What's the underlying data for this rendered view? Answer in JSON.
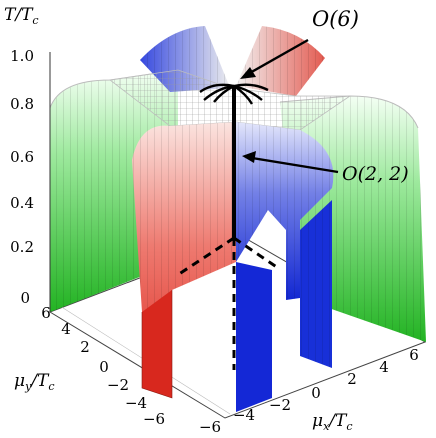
{
  "labels": {
    "y_axis": "T/T",
    "y_axis_sub": "c",
    "mu_y": "μ",
    "mu_y_sub": "y",
    "mu_y_tail": "/T",
    "mu_y_tail_sub": "c",
    "mu_x": "μ",
    "mu_x_sub": "x",
    "mu_x_tail": "/T",
    "mu_x_tail_sub": "c"
  },
  "annotations": {
    "o6": "O(6)",
    "o22": "O(2, 2)"
  },
  "t_ticks": [
    "0",
    "0.2",
    "0.4",
    "0.6",
    "0.8",
    "1.0"
  ],
  "mu_y_ticks": [
    "6",
    "4",
    "2",
    "0",
    "−2",
    "−4",
    "−6"
  ],
  "mu_x_ticks": [
    "−6",
    "−4",
    "−2",
    "0",
    "2",
    "4",
    "6"
  ],
  "colors": {
    "green_face": "#35c235",
    "green_light": "#c8f2c8",
    "red_face": "#e23a2e",
    "red_light": "#f4c6c0",
    "blue_face": "#1b2fd6",
    "blue_light": "#c9cff2",
    "top": "#eeeeee",
    "line": "#000000"
  }
}
